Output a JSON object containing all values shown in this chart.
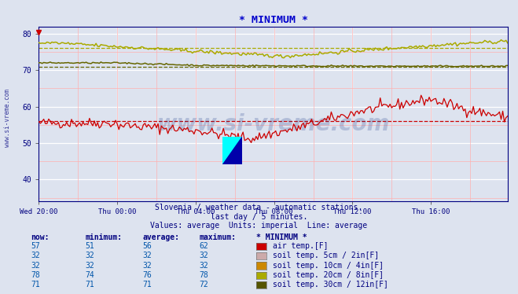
{
  "title": "* MINIMUM *",
  "title_color": "#0000cc",
  "bg_color": "#dde3ef",
  "plot_bg_color": "#dde3ef",
  "subtitle1": "Slovenia / weather data - automatic stations.",
  "subtitle2": "last day / 5 minutes.",
  "subtitle3": "Values: average  Units: imperial  Line: average",
  "watermark": "www.si-vreme.com",
  "ylim": [
    34,
    82
  ],
  "yticks": [
    40,
    50,
    60,
    70,
    80
  ],
  "xtick_labels": [
    "Wed 20:00",
    "Thu 00:00",
    "Thu 04:00",
    "Thu 08:00",
    "Thu 12:00",
    "Thu 16:00"
  ],
  "xtick_positions": [
    0,
    48,
    96,
    144,
    192,
    240
  ],
  "n_points": 288,
  "air_avg": 56,
  "soil20_avg": 76,
  "soil30_avg": 71,
  "air_color": "#cc0000",
  "soil20_color": "#aaaa00",
  "soil30_color": "#666600",
  "legend_table": {
    "headers": [
      "now:",
      "minimum:",
      "average:",
      "maximum:",
      "* MINIMUM *"
    ],
    "rows": [
      [
        57,
        51,
        56,
        62,
        "air temp.[F]",
        "#cc0000"
      ],
      [
        32,
        32,
        32,
        32,
        "soil temp. 5cm / 2in[F]",
        "#ccaaaa"
      ],
      [
        32,
        32,
        32,
        32,
        "soil temp. 10cm / 4in[F]",
        "#cc8800"
      ],
      [
        78,
        74,
        76,
        78,
        "soil temp. 20cm / 8in[F]",
        "#aaaa00"
      ],
      [
        71,
        71,
        71,
        72,
        "soil temp. 30cm / 12in[F]",
        "#555500"
      ]
    ]
  }
}
